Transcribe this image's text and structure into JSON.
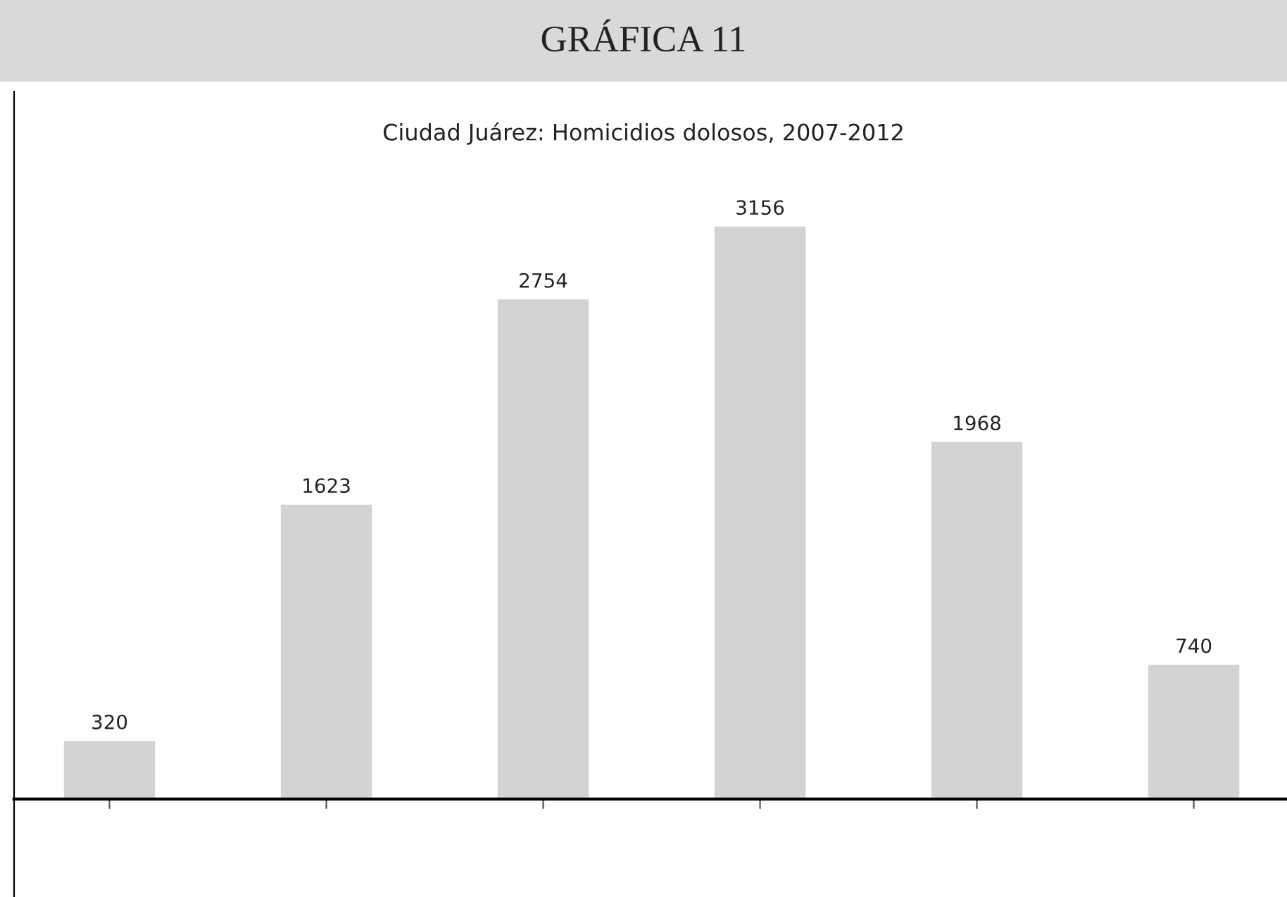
{
  "chart_data": {
    "type": "bar",
    "title": "GRÁFICA 11",
    "subtitle": "Ciudad Juárez: Homicidios dolosos, 2007-2012",
    "categories": [
      null,
      null,
      null,
      null,
      null,
      null
    ],
    "values": [
      320,
      1623,
      2754,
      3156,
      1968,
      740
    ],
    "color": "#d3d3d3",
    "ylim": [
      -540,
      3900
    ],
    "data_labels": true,
    "grid": false,
    "legend": false
  }
}
